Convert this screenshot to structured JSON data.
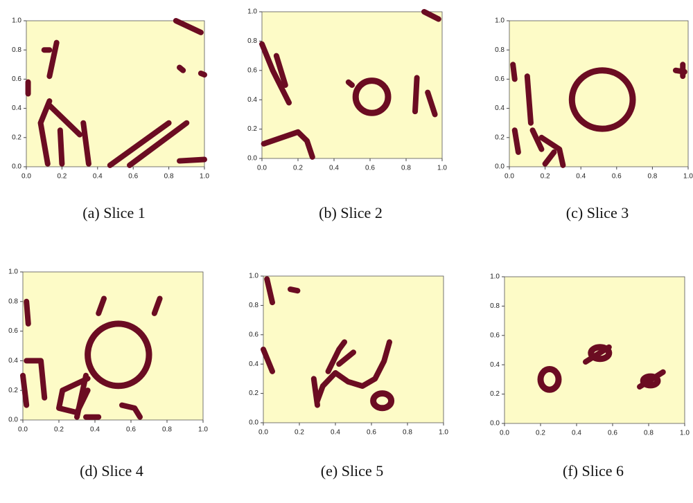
{
  "axis_ticks": [
    "0.0",
    "0.2",
    "0.4",
    "0.6",
    "0.8",
    "1.0"
  ],
  "panels": [
    {
      "caption": "(a) Slice 1"
    },
    {
      "caption": "(b) Slice 2"
    },
    {
      "caption": "(c) Slice 3"
    },
    {
      "caption": "(d) Slice 4"
    },
    {
      "caption": "(e) Slice 5"
    },
    {
      "caption": "(f) Slice 6"
    }
  ]
}
